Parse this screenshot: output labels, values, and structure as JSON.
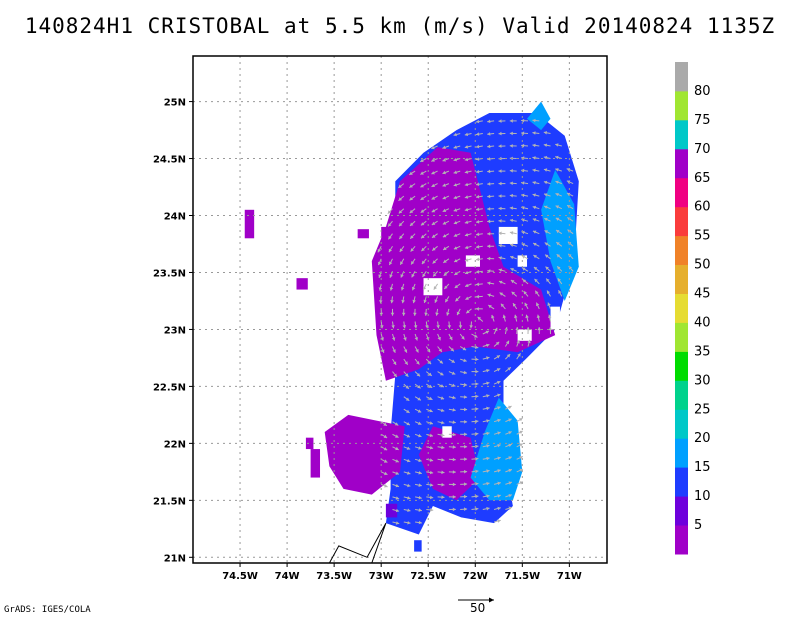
{
  "title": "140824H1 CRISTOBAL at 5.5 km (m/s) Valid 20140824 1135Z",
  "credit": "GrADS: IGES/COLA",
  "reference_vector": {
    "label": "50"
  },
  "axes": {
    "x_ticks": [
      "74.5W",
      "74W",
      "73.5W",
      "73W",
      "72.5W",
      "72W",
      "71.5W",
      "71W"
    ],
    "y_ticks": [
      "25N",
      "24.5N",
      "24N",
      "23.5N",
      "23N",
      "22.5N",
      "22N",
      "21.5N",
      "21N"
    ]
  },
  "colorbar": {
    "labels": [
      "5",
      "10",
      "15",
      "20",
      "25",
      "30",
      "35",
      "40",
      "45",
      "50",
      "55",
      "60",
      "65",
      "70",
      "75",
      "80"
    ],
    "colors": [
      "#a000c8",
      "#6e00dc",
      "#1e3cff",
      "#00a0ff",
      "#00c8c8",
      "#00d28c",
      "#00dc00",
      "#a0e632",
      "#e6dc32",
      "#e6af2d",
      "#f08228",
      "#fa3c3c",
      "#f00082",
      "#a000c8",
      "#00c8c8",
      "#a0e632",
      "#aaaaaa"
    ]
  },
  "chart_data": {
    "type": "heatmap",
    "title": "140824H1 CRISTOBAL at 5.5 km (m/s) Valid 20140824 1135Z",
    "x_range_deg_w": [
      75.0,
      70.6
    ],
    "y_range_deg_n": [
      20.95,
      25.4
    ],
    "colorbar_range_ms": [
      0,
      85
    ],
    "regions": [
      {
        "level": 12,
        "color_index": 2,
        "polygon": [
          [
            72.85,
            22.6
          ],
          [
            72.85,
            24.3
          ],
          [
            72.55,
            24.55
          ],
          [
            72.2,
            24.75
          ],
          [
            71.85,
            24.9
          ],
          [
            71.35,
            24.9
          ],
          [
            71.05,
            24.7
          ],
          [
            70.9,
            24.3
          ],
          [
            70.95,
            23.6
          ],
          [
            71.15,
            23.0
          ],
          [
            71.45,
            22.75
          ],
          [
            71.7,
            22.55
          ],
          [
            71.7,
            21.9
          ],
          [
            71.6,
            21.45
          ],
          [
            71.8,
            21.3
          ],
          [
            72.15,
            21.35
          ],
          [
            72.45,
            21.45
          ],
          [
            72.6,
            21.2
          ],
          [
            72.95,
            21.3
          ],
          [
            72.9,
            21.6
          ],
          [
            72.9,
            22.1
          ]
        ]
      },
      {
        "level": 5,
        "color_index": 0,
        "polygon": [
          [
            72.95,
            23.9
          ],
          [
            72.8,
            24.3
          ],
          [
            72.4,
            24.6
          ],
          [
            72.05,
            24.55
          ],
          [
            71.85,
            23.9
          ],
          [
            71.7,
            23.55
          ],
          [
            71.3,
            23.35
          ],
          [
            71.15,
            22.95
          ],
          [
            71.55,
            22.8
          ],
          [
            72.0,
            22.85
          ],
          [
            72.35,
            22.8
          ],
          [
            72.6,
            22.65
          ],
          [
            72.95,
            22.55
          ],
          [
            73.05,
            22.95
          ],
          [
            73.1,
            23.6
          ]
        ]
      },
      {
        "level": 5,
        "color_index": 0,
        "polygon": [
          [
            73.6,
            22.1
          ],
          [
            73.55,
            21.8
          ],
          [
            73.4,
            21.6
          ],
          [
            73.1,
            21.55
          ],
          [
            72.8,
            21.75
          ],
          [
            72.75,
            22.15
          ],
          [
            73.05,
            22.2
          ],
          [
            73.35,
            22.25
          ]
        ]
      },
      {
        "level": 5,
        "color_index": 0,
        "polygon": [
          [
            72.45,
            22.15
          ],
          [
            72.05,
            22.05
          ],
          [
            71.95,
            21.7
          ],
          [
            72.2,
            21.5
          ],
          [
            72.45,
            21.6
          ],
          [
            72.6,
            21.9
          ]
        ]
      },
      {
        "level": 17,
        "color_index": 3,
        "polygon": [
          [
            71.15,
            24.4
          ],
          [
            70.95,
            24.1
          ],
          [
            70.9,
            23.55
          ],
          [
            71.05,
            23.25
          ],
          [
            71.2,
            23.6
          ],
          [
            71.3,
            24.05
          ]
        ]
      },
      {
        "level": 17,
        "color_index": 3,
        "polygon": [
          [
            71.75,
            22.4
          ],
          [
            71.55,
            22.2
          ],
          [
            71.5,
            21.75
          ],
          [
            71.6,
            21.5
          ],
          [
            71.85,
            21.5
          ],
          [
            72.05,
            21.7
          ],
          [
            71.9,
            22.1
          ]
        ]
      },
      {
        "level": 17,
        "color_index": 3,
        "polygon": [
          [
            71.3,
            25.0
          ],
          [
            71.2,
            24.85
          ],
          [
            71.3,
            24.75
          ],
          [
            71.45,
            24.85
          ]
        ]
      }
    ],
    "isolated_cells": [
      {
        "lon": 74.45,
        "lat": 23.8,
        "w": 0.1,
        "h": 0.25,
        "color_index": 0
      },
      {
        "lon": 73.9,
        "lat": 23.35,
        "w": 0.12,
        "h": 0.1,
        "color_index": 0
      },
      {
        "lon": 73.25,
        "lat": 23.8,
        "w": 0.12,
        "h": 0.08,
        "color_index": 0
      },
      {
        "lon": 73.0,
        "lat": 23.8,
        "w": 0.1,
        "h": 0.1,
        "color_index": 0
      },
      {
        "lon": 73.75,
        "lat": 21.7,
        "w": 0.1,
        "h": 0.25,
        "color_index": 0
      },
      {
        "lon": 73.8,
        "lat": 21.95,
        "w": 0.08,
        "h": 0.1,
        "color_index": 0
      },
      {
        "lon": 72.95,
        "lat": 21.35,
        "w": 0.12,
        "h": 0.12,
        "color_index": 1
      },
      {
        "lon": 72.65,
        "lat": 21.05,
        "w": 0.08,
        "h": 0.1,
        "color_index": 2
      }
    ],
    "holes": [
      {
        "lon": 72.55,
        "lat": 23.3,
        "w": 0.2,
        "h": 0.15
      },
      {
        "lon": 72.1,
        "lat": 23.55,
        "w": 0.15,
        "h": 0.1
      },
      {
        "lon": 71.75,
        "lat": 23.75,
        "w": 0.2,
        "h": 0.15
      },
      {
        "lon": 71.55,
        "lat": 23.55,
        "w": 0.1,
        "h": 0.1
      },
      {
        "lon": 71.2,
        "lat": 23.0,
        "w": 0.1,
        "h": 0.2
      },
      {
        "lon": 71.55,
        "lat": 22.9,
        "w": 0.15,
        "h": 0.1
      },
      {
        "lon": 72.35,
        "lat": 22.05,
        "w": 0.1,
        "h": 0.1
      }
    ],
    "track": [
      [
        73.55,
        20.95
      ],
      [
        73.45,
        21.1
      ],
      [
        73.15,
        21.0
      ],
      [
        72.95,
        21.3
      ],
      [
        73.1,
        20.95
      ]
    ]
  }
}
